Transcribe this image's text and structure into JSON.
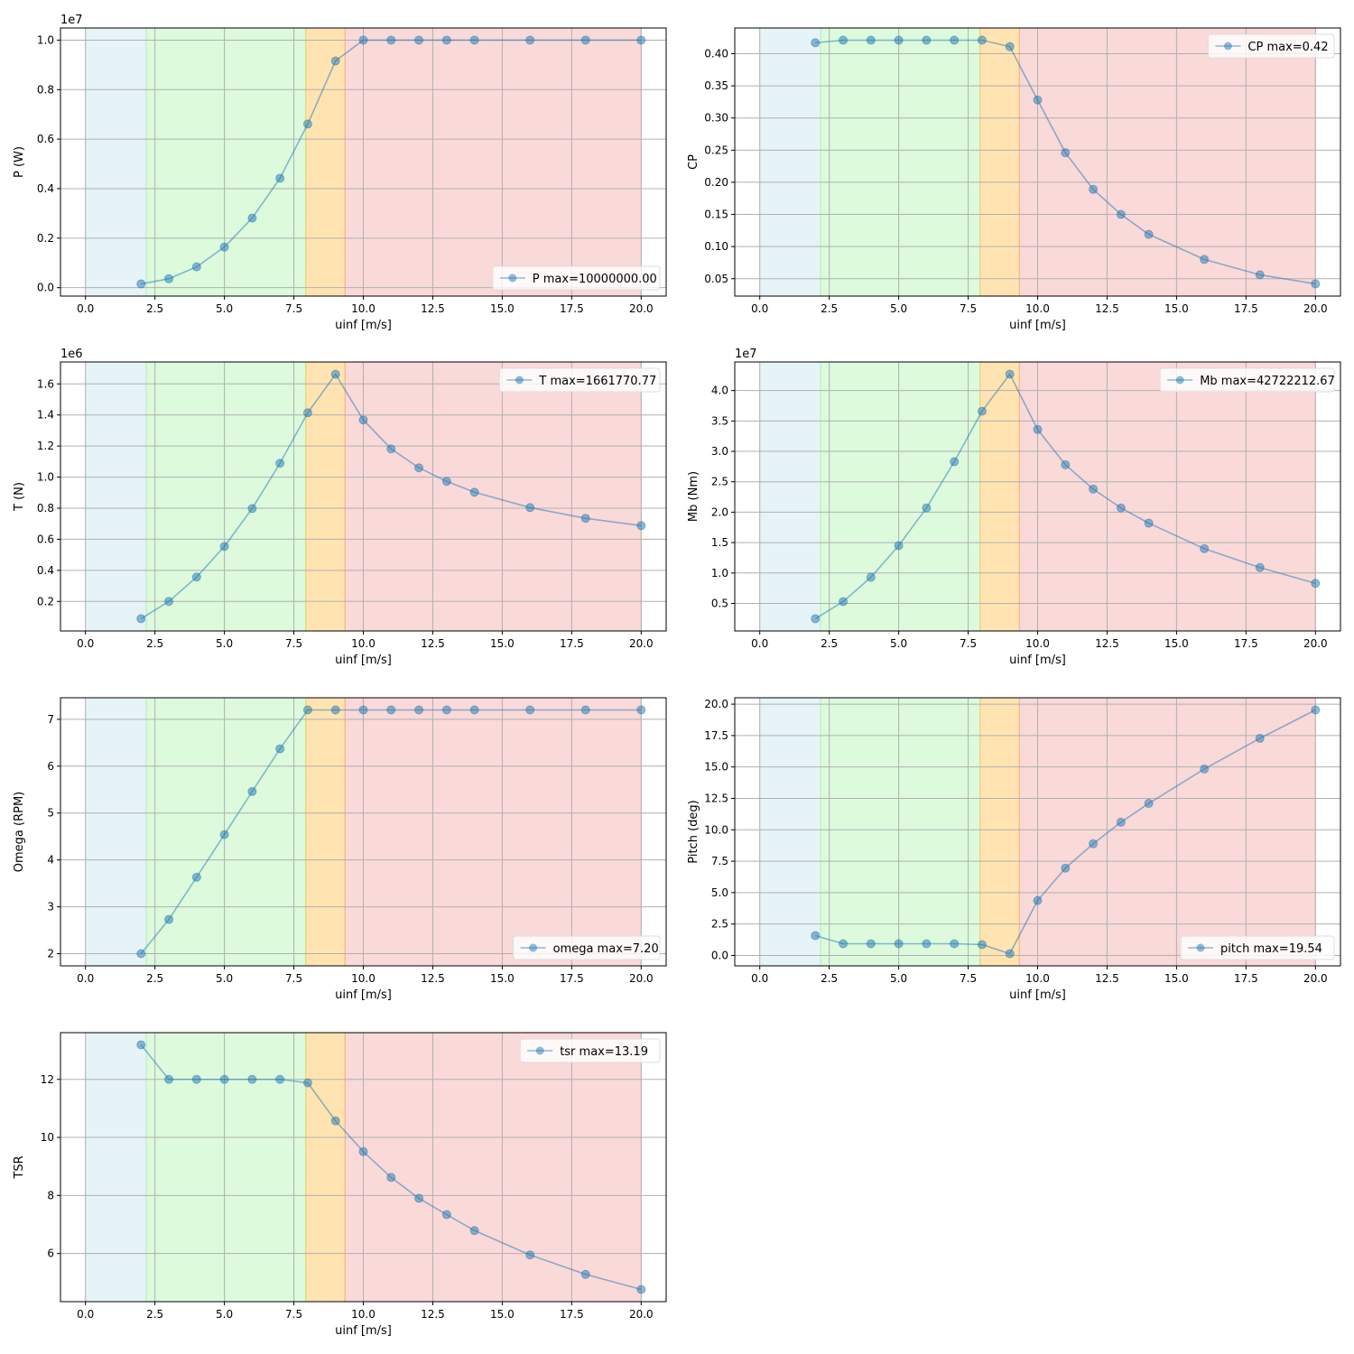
{
  "colors": {
    "series": "#1f77b4",
    "regions": [
      "#add8e6",
      "#90ee90",
      "#ffa500",
      "#f08080"
    ],
    "grid": "#b0b0b0"
  },
  "chart_data": [
    {
      "type": "line",
      "id": "P",
      "ylabel": "P (W)",
      "xlabel": "uinf [m/s]",
      "offset_label": "1e7",
      "legend": "P max=10000000.00",
      "legend_loc": "lower right",
      "x": [
        2,
        3,
        4,
        5,
        6,
        7,
        8,
        9,
        10,
        11,
        12,
        13,
        14,
        16,
        18,
        20
      ],
      "y": [
        0.015,
        0.036,
        0.084,
        0.164,
        0.281,
        0.442,
        0.661,
        0.916,
        1.0,
        1.0,
        1.0,
        1.0,
        1.0,
        1.0,
        1.0,
        1.0
      ],
      "xlim": [
        -0.9,
        20.9
      ],
      "ylim": [
        -0.034,
        1.049
      ],
      "xticks": [
        0,
        2.5,
        5,
        7.5,
        10,
        12.5,
        15,
        17.5,
        20
      ],
      "xtick_labels": [
        "0.0",
        "2.5",
        "5.0",
        "7.5",
        "10.0",
        "12.5",
        "15.0",
        "17.5",
        "20.0"
      ],
      "yticks": [
        0,
        0.2,
        0.4,
        0.6,
        0.8,
        1.0
      ],
      "ytick_labels": [
        "0.0",
        "0.2",
        "0.4",
        "0.6",
        "0.8",
        "1.0"
      ]
    },
    {
      "type": "line",
      "id": "CP",
      "ylabel": "CP",
      "xlabel": "uinf [m/s]",
      "offset_label": "",
      "legend": "CP max=0.42",
      "legend_loc": "upper right",
      "x": [
        2,
        3,
        4,
        5,
        6,
        7,
        8,
        9,
        10,
        11,
        12,
        13,
        14,
        16,
        18,
        20
      ],
      "y": [
        0.417,
        0.421,
        0.421,
        0.421,
        0.421,
        0.421,
        0.421,
        0.411,
        0.328,
        0.246,
        0.189,
        0.15,
        0.119,
        0.08,
        0.056,
        0.042
      ],
      "xlim": [
        -0.9,
        20.9
      ],
      "ylim": [
        0.023,
        0.44
      ],
      "xticks": [
        0,
        2.5,
        5,
        7.5,
        10,
        12.5,
        15,
        17.5,
        20
      ],
      "xtick_labels": [
        "0.0",
        "2.5",
        "5.0",
        "7.5",
        "10.0",
        "12.5",
        "15.0",
        "17.5",
        "20.0"
      ],
      "yticks": [
        0.05,
        0.1,
        0.15,
        0.2,
        0.25,
        0.3,
        0.35,
        0.4
      ],
      "ytick_labels": [
        "0.05",
        "0.10",
        "0.15",
        "0.20",
        "0.25",
        "0.30",
        "0.35",
        "0.40"
      ]
    },
    {
      "type": "line",
      "id": "T",
      "ylabel": "T (N)",
      "xlabel": "uinf [m/s]",
      "offset_label": "1e6",
      "legend": "T max=1661770.77",
      "legend_loc": "upper right",
      "x": [
        2,
        3,
        4,
        5,
        6,
        7,
        8,
        9,
        10,
        11,
        12,
        13,
        14,
        16,
        18,
        20
      ],
      "y": [
        0.089,
        0.2,
        0.357,
        0.554,
        0.798,
        1.089,
        1.414,
        1.662,
        1.368,
        1.182,
        1.06,
        0.973,
        0.903,
        0.804,
        0.735,
        0.688
      ],
      "xlim": [
        -0.9,
        20.9
      ],
      "ylim": [
        0.01,
        1.741
      ],
      "xticks": [
        0,
        2.5,
        5,
        7.5,
        10,
        12.5,
        15,
        17.5,
        20
      ],
      "xtick_labels": [
        "0.0",
        "2.5",
        "5.0",
        "7.5",
        "10.0",
        "12.5",
        "15.0",
        "17.5",
        "20.0"
      ],
      "yticks": [
        0.2,
        0.4,
        0.6,
        0.8,
        1.0,
        1.2,
        1.4,
        1.6
      ],
      "ytick_labels": [
        "0.2",
        "0.4",
        "0.6",
        "0.8",
        "1.0",
        "1.2",
        "1.4",
        "1.6"
      ]
    },
    {
      "type": "line",
      "id": "Mb",
      "ylabel": "Mb (Nm)",
      "xlabel": "uinf [m/s]",
      "offset_label": "1e7",
      "legend": "Mb max=42722212.67",
      "legend_loc": "upper right",
      "x": [
        2,
        3,
        4,
        5,
        6,
        7,
        8,
        9,
        10,
        11,
        12,
        13,
        14,
        16,
        18,
        20
      ],
      "y": [
        0.248,
        0.53,
        0.93,
        1.45,
        2.07,
        2.83,
        3.66,
        4.27,
        3.36,
        2.78,
        2.38,
        2.07,
        1.82,
        1.4,
        1.09,
        0.83
      ],
      "xlim": [
        -0.9,
        20.9
      ],
      "ylim": [
        0.047,
        4.47
      ],
      "xticks": [
        0,
        2.5,
        5,
        7.5,
        10,
        12.5,
        15,
        17.5,
        20
      ],
      "xtick_labels": [
        "0.0",
        "2.5",
        "5.0",
        "7.5",
        "10.0",
        "12.5",
        "15.0",
        "17.5",
        "20.0"
      ],
      "yticks": [
        0.5,
        1.0,
        1.5,
        2.0,
        2.5,
        3.0,
        3.5,
        4.0
      ],
      "ytick_labels": [
        "0.5",
        "1.0",
        "1.5",
        "2.0",
        "2.5",
        "3.0",
        "3.5",
        "4.0"
      ]
    },
    {
      "type": "line",
      "id": "omega",
      "ylabel": "Omega (RPM)",
      "xlabel": "uinf [m/s]",
      "offset_label": "",
      "legend": "omega max=7.20",
      "legend_loc": "lower right",
      "x": [
        2,
        3,
        4,
        5,
        6,
        7,
        8,
        9,
        10,
        11,
        12,
        13,
        14,
        16,
        18,
        20
      ],
      "y": [
        2.0,
        2.73,
        3.63,
        4.54,
        5.46,
        6.37,
        7.2,
        7.2,
        7.2,
        7.2,
        7.2,
        7.2,
        7.2,
        7.2,
        7.2,
        7.2
      ],
      "xlim": [
        -0.9,
        20.9
      ],
      "ylim": [
        1.74,
        7.46
      ],
      "xticks": [
        0,
        2.5,
        5,
        7.5,
        10,
        12.5,
        15,
        17.5,
        20
      ],
      "xtick_labels": [
        "0.0",
        "2.5",
        "5.0",
        "7.5",
        "10.0",
        "12.5",
        "15.0",
        "17.5",
        "20.0"
      ],
      "yticks": [
        2,
        3,
        4,
        5,
        6,
        7
      ],
      "ytick_labels": [
        "2",
        "3",
        "4",
        "5",
        "6",
        "7"
      ]
    },
    {
      "type": "line",
      "id": "pitch",
      "ylabel": "Pitch (deg)",
      "xlabel": "uinf [m/s]",
      "offset_label": "",
      "legend": "pitch max=19.54",
      "legend_loc": "lower right",
      "x": [
        2,
        3,
        4,
        5,
        6,
        7,
        8,
        9,
        10,
        11,
        12,
        13,
        14,
        16,
        18,
        20
      ],
      "y": [
        1.58,
        0.93,
        0.93,
        0.93,
        0.93,
        0.93,
        0.86,
        0.14,
        4.37,
        6.95,
        8.89,
        10.6,
        12.1,
        14.84,
        17.28,
        19.54
      ],
      "xlim": [
        -0.9,
        20.9
      ],
      "ylim": [
        -0.83,
        20.51
      ],
      "xticks": [
        0,
        2.5,
        5,
        7.5,
        10,
        12.5,
        15,
        17.5,
        20
      ],
      "xtick_labels": [
        "0.0",
        "2.5",
        "5.0",
        "7.5",
        "10.0",
        "12.5",
        "15.0",
        "17.5",
        "20.0"
      ],
      "yticks": [
        0,
        2.5,
        5,
        7.5,
        10,
        12.5,
        15,
        17.5,
        20
      ],
      "ytick_labels": [
        "0.0",
        "2.5",
        "5.0",
        "7.5",
        "10.0",
        "12.5",
        "15.0",
        "17.5",
        "20.0"
      ]
    },
    {
      "type": "line",
      "id": "tsr",
      "ylabel": "TSR",
      "xlabel": "uinf [m/s]",
      "offset_label": "",
      "legend": "tsr max=13.19",
      "legend_loc": "upper right",
      "x": [
        2,
        3,
        4,
        5,
        6,
        7,
        8,
        9,
        10,
        11,
        12,
        13,
        14,
        16,
        18,
        20
      ],
      "y": [
        13.19,
        12.0,
        12.0,
        12.0,
        12.0,
        12.0,
        11.88,
        10.57,
        9.51,
        8.62,
        7.9,
        7.34,
        6.79,
        5.95,
        5.28,
        4.76
      ],
      "xlim": [
        -0.9,
        20.9
      ],
      "ylim": [
        4.34,
        13.61
      ],
      "xticks": [
        0,
        2.5,
        5,
        7.5,
        10,
        12.5,
        15,
        17.5,
        20
      ],
      "xtick_labels": [
        "0.0",
        "2.5",
        "5.0",
        "7.5",
        "10.0",
        "12.5",
        "15.0",
        "17.5",
        "20.0"
      ],
      "yticks": [
        6,
        8,
        10,
        12
      ],
      "ytick_labels": [
        "6",
        "8",
        "10",
        "12"
      ]
    }
  ],
  "regions": [
    {
      "from": 0,
      "to": 2.19
    },
    {
      "from": 2.19,
      "to": 7.93
    },
    {
      "from": 7.93,
      "to": 9.34
    },
    {
      "from": 9.34,
      "to": 20
    }
  ]
}
